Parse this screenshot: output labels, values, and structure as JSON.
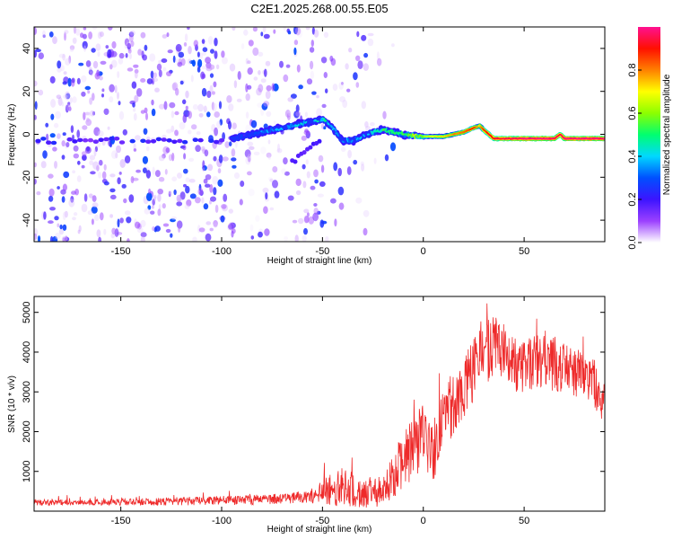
{
  "title": "C2E1.2025.268.00.55.E05",
  "chart_data": [
    {
      "type": "heatmap",
      "title": "C2E1.2025.268.00.55.E05",
      "xlabel": "Height of straight line (km)",
      "ylabel": "Frequency (Hz)",
      "xlim": [
        -193,
        90
      ],
      "ylim": [
        -50,
        50
      ],
      "xticks": [
        -150,
        -100,
        -50,
        0,
        50
      ],
      "yticks": [
        -40,
        -20,
        0,
        20,
        40
      ],
      "colorbar": {
        "label": "Normalized spectral amplitude",
        "range": [
          0,
          1
        ],
        "ticks": [
          0.0,
          0.2,
          0.4,
          0.6,
          0.8
        ],
        "tick_labels": [
          "0.0",
          "0.2",
          "0.4",
          "0.6",
          "0.8"
        ],
        "colors": [
          "#ffffff",
          "#9b40ff",
          "#3c14ff",
          "#0050ff",
          "#00d8ff",
          "#00ff70",
          "#8cff00",
          "#ffff00",
          "#ff8000",
          "#ff1000",
          "#ff1090"
        ]
      },
      "signal_track": {
        "description": "dominant frequency ridge",
        "height_km": [
          -95,
          -85,
          -75,
          -65,
          -55,
          -50,
          -45,
          -40,
          -35,
          -30,
          -25,
          -20,
          -10,
          0,
          10,
          20,
          25,
          28,
          30,
          35,
          50,
          65,
          68,
          70,
          90
        ],
        "frequency_hz": [
          -2,
          0,
          2,
          4,
          6,
          7,
          3,
          -3,
          -3,
          -1,
          1,
          2,
          0,
          -1,
          -1,
          1,
          3,
          4,
          2,
          -2,
          -2,
          -2,
          0,
          -2,
          -2
        ],
        "amplitude": [
          0.2,
          0.25,
          0.3,
          0.35,
          0.4,
          0.4,
          0.35,
          0.3,
          0.3,
          0.35,
          0.4,
          0.45,
          0.5,
          0.6,
          0.7,
          0.8,
          0.85,
          0.7,
          0.85,
          0.9,
          0.95,
          0.95,
          0.9,
          0.95,
          0.95
        ]
      }
    },
    {
      "type": "line",
      "xlabel": "Height of straight line (km)",
      "ylabel": "SNR (10 * v/v)",
      "xlim": [
        -193,
        90
      ],
      "ylim": [
        0,
        5400
      ],
      "xticks": [
        -150,
        -100,
        -50,
        0,
        50
      ],
      "yticks": [
        1000,
        2000,
        3000,
        4000,
        5000
      ],
      "series": [
        {
          "name": "SNR",
          "color": "#ee2a2a",
          "x": [
            -193,
            -170,
            -150,
            -130,
            -110,
            -90,
            -75,
            -60,
            -52,
            -48,
            -45,
            -40,
            -35,
            -30,
            -25,
            -20,
            -15,
            -10,
            -5,
            0,
            5,
            10,
            15,
            20,
            25,
            30,
            35,
            40,
            45,
            50,
            55,
            60,
            65,
            70,
            75,
            80,
            85,
            88,
            90
          ],
          "y_mean": [
            220,
            220,
            230,
            240,
            260,
            280,
            300,
            340,
            420,
            600,
            500,
            650,
            550,
            400,
            500,
            480,
            900,
            1300,
            1600,
            1900,
            1400,
            2300,
            2700,
            3000,
            3600,
            3900,
            4200,
            4000,
            3700,
            3600,
            3700,
            3800,
            3700,
            3600,
            3500,
            3400,
            3200,
            2600,
            3300
          ],
          "y_noise": [
            80,
            80,
            90,
            100,
            110,
            120,
            130,
            150,
            250,
            500,
            400,
            500,
            450,
            350,
            400,
            400,
            600,
            700,
            800,
            800,
            700,
            800,
            800,
            800,
            800,
            800,
            800,
            700,
            700,
            700,
            700,
            700,
            700,
            600,
            600,
            600,
            600,
            500,
            500
          ]
        }
      ]
    }
  ]
}
